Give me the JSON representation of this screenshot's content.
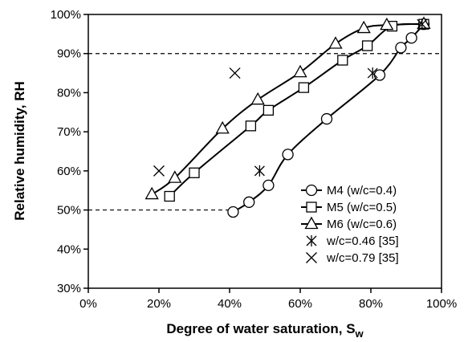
{
  "chart_data": {
    "type": "scatter",
    "xlabel": "Degree of water saturation, S",
    "xlabel_subscript": "w",
    "ylabel": "Relative humidity, RH",
    "xlim": [
      0,
      100
    ],
    "ylim": [
      30,
      100
    ],
    "x_ticks": [
      0,
      20,
      40,
      60,
      80,
      100
    ],
    "y_ticks": [
      30,
      40,
      50,
      60,
      70,
      80,
      90,
      100
    ],
    "x_tick_labels": [
      "0%",
      "20%",
      "40%",
      "60%",
      "80%",
      "100%"
    ],
    "y_tick_labels": [
      "30%",
      "40%",
      "50%",
      "60%",
      "70%",
      "80%",
      "90%",
      "100%"
    ],
    "grid": false,
    "legend_position": "bottom-right",
    "reference_lines": [
      {
        "y": 90,
        "x_from": 0,
        "x_to": 100,
        "style": "dashed"
      },
      {
        "y": 50,
        "x_from": 0,
        "x_to": 41,
        "style": "dashed"
      }
    ],
    "series": [
      {
        "name": "M4 (w/c=0.4)",
        "marker": "circle",
        "connected": true,
        "points": [
          {
            "x": 41,
            "y": 49.5
          },
          {
            "x": 45.5,
            "y": 52
          },
          {
            "x": 51,
            "y": 56.3
          },
          {
            "x": 56.5,
            "y": 64.2
          },
          {
            "x": 67.5,
            "y": 73.3
          },
          {
            "x": 82.5,
            "y": 84.5
          },
          {
            "x": 88.5,
            "y": 91.5
          },
          {
            "x": 91.5,
            "y": 94
          },
          {
            "x": 95,
            "y": 97.5
          }
        ]
      },
      {
        "name": "M5 (w/c=0.5)",
        "marker": "square",
        "connected": true,
        "points": [
          {
            "x": 23,
            "y": 53.5
          },
          {
            "x": 30,
            "y": 59.5
          },
          {
            "x": 46,
            "y": 71.5
          },
          {
            "x": 51,
            "y": 75.5
          },
          {
            "x": 61,
            "y": 81.3
          },
          {
            "x": 72,
            "y": 88.3
          },
          {
            "x": 79,
            "y": 92
          },
          {
            "x": 86,
            "y": 97
          },
          {
            "x": 95,
            "y": 97.5
          }
        ]
      },
      {
        "name": "M6 (w/c=0.6)",
        "marker": "triangle",
        "connected": true,
        "points": [
          {
            "x": 18,
            "y": 54
          },
          {
            "x": 24.5,
            "y": 58.2
          },
          {
            "x": 38,
            "y": 70.8
          },
          {
            "x": 48,
            "y": 78.2
          },
          {
            "x": 60,
            "y": 85.2
          },
          {
            "x": 70,
            "y": 92.5
          },
          {
            "x": 78,
            "y": 96.5
          },
          {
            "x": 84.5,
            "y": 97.3
          },
          {
            "x": 95,
            "y": 97.6
          }
        ]
      },
      {
        "name": "w/c=0.46 [35]",
        "marker": "asterisk",
        "connected": false,
        "points": [
          {
            "x": 48.5,
            "y": 60
          },
          {
            "x": 80.5,
            "y": 85
          },
          {
            "x": 94.5,
            "y": 97.5
          }
        ]
      },
      {
        "name": "w/c=0.79 [35]",
        "marker": "x",
        "connected": false,
        "points": [
          {
            "x": 20,
            "y": 60
          },
          {
            "x": 41.5,
            "y": 85
          }
        ]
      }
    ]
  }
}
